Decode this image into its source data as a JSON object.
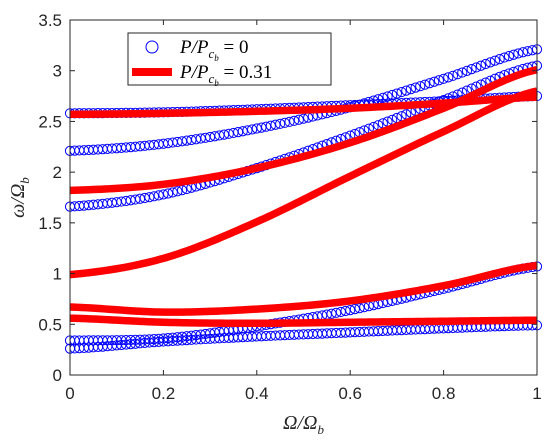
{
  "chart_data": {
    "type": "scatter",
    "xlabel": "Ω/Ω",
    "xlabel_sub": "b",
    "ylabel": "ω/Ω",
    "ylabel_sub": "b",
    "xlim": [
      0,
      1
    ],
    "ylim": [
      0,
      3.5
    ],
    "x_ticks": [
      "0",
      "0.2",
      "0.4",
      "0.6",
      "0.8",
      "1"
    ],
    "y_ticks": [
      "0",
      "0.5",
      "1",
      "1.5",
      "2",
      "2.5",
      "3",
      "3.5"
    ],
    "legend_position": "top-left",
    "series": [
      {
        "name": "P/Pcb = 0",
        "label_main": "P/P",
        "label_sub": "c",
        "label_subsub": "b",
        "label_value": " = 0",
        "style": "markers",
        "color": "#0000ff",
        "curves": [
          {
            "x": [
              0,
              0.2,
              0.4,
              0.6,
              0.8,
              1.0
            ],
            "y": [
              0.26,
              0.33,
              0.38,
              0.42,
              0.46,
              0.49
            ]
          },
          {
            "x": [
              0,
              0.2,
              0.4,
              0.6,
              0.8,
              1.0
            ],
            "y": [
              0.34,
              0.36,
              0.48,
              0.64,
              0.85,
              1.07
            ]
          },
          {
            "x": [
              0,
              0.2,
              0.4,
              0.6,
              0.8,
              1.0
            ],
            "y": [
              1.66,
              1.78,
              2.04,
              2.36,
              2.71,
              3.05
            ]
          },
          {
            "x": [
              0,
              0.2,
              0.4,
              0.6,
              0.8,
              1.0
            ],
            "y": [
              2.21,
              2.28,
              2.43,
              2.64,
              2.92,
              3.21
            ]
          },
          {
            "x": [
              0,
              0.2,
              0.4,
              0.6,
              0.8,
              1.0
            ],
            "y": [
              2.58,
              2.59,
              2.62,
              2.66,
              2.7,
              2.75
            ]
          }
        ]
      },
      {
        "name": "P/Pcb = 0.31",
        "label_main": "P/P",
        "label_sub": "c",
        "label_subsub": "b",
        "label_value": " = 0.31",
        "style": "thick-line",
        "color": "#ff0000",
        "curves": [
          {
            "x": [
              0,
              0.2,
              0.4,
              0.6,
              0.8,
              1.0
            ],
            "y": [
              0.56,
              0.52,
              0.51,
              0.52,
              0.53,
              0.54
            ]
          },
          {
            "x": [
              0,
              0.2,
              0.4,
              0.6,
              0.8,
              1.0
            ],
            "y": [
              0.67,
              0.62,
              0.65,
              0.73,
              0.88,
              1.08
            ]
          },
          {
            "x": [
              0,
              0.2,
              0.4,
              0.6,
              0.8,
              1.0
            ],
            "y": [
              0.99,
              1.15,
              1.51,
              1.96,
              2.4,
              2.8
            ]
          },
          {
            "x": [
              0,
              0.2,
              0.4,
              0.6,
              0.8,
              1.0
            ],
            "y": [
              1.82,
              1.88,
              2.04,
              2.29,
              2.63,
              3.01
            ]
          },
          {
            "x": [
              0,
              0.2,
              0.4,
              0.6,
              0.8,
              1.0
            ],
            "y": [
              2.57,
              2.58,
              2.6,
              2.63,
              2.68,
              2.74
            ]
          }
        ]
      }
    ]
  }
}
